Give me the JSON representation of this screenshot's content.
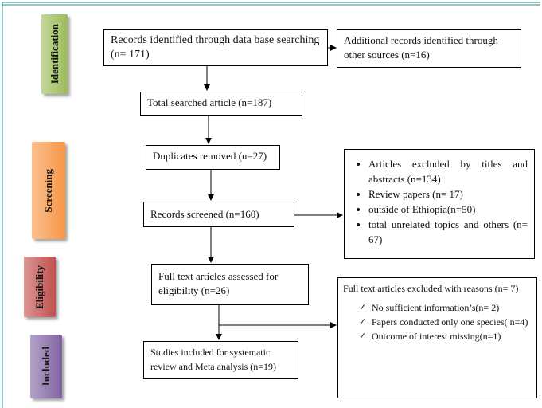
{
  "stages": [
    "Identification",
    "Screening",
    "Eligibility",
    "Included"
  ],
  "boxes": {
    "identified": "Records identified through data base searching (n= 171)",
    "additional": "Additional records identified through other sources (n=16)",
    "total": "Total searched article (n=187)",
    "duplicates": "Duplicates removed (n=27)",
    "screened": "Records screened (n=160)",
    "excluded_screening": {
      "items": [
        "Articles excluded by titles and abstracts (n=134)",
        "Review papers (n= 17)",
        "outside of Ethiopia(n=50)",
        "total unrelated topics and others (n= 67)"
      ]
    },
    "full_text": "Full text articles assessed for eligibility (n=26)",
    "excluded_full_text": {
      "title": "Full text articles excluded with reasons (n= 7)",
      "items": [
        "No sufficient information’s(n= 2)",
        "Papers conducted only one species( n=4)",
        "Outcome of interest missing(n=1)"
      ]
    },
    "included": "Studies included for systematic review and Meta analysis (n=19)"
  }
}
